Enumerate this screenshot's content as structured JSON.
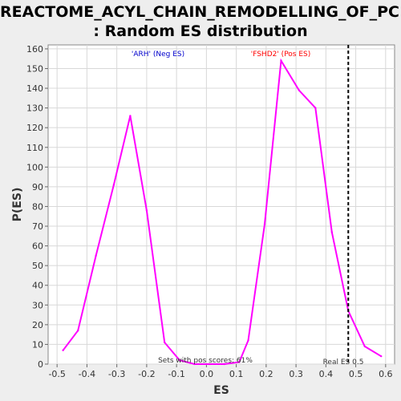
{
  "title_line1": "REACTOME_ACYL_CHAIN_REMODELLING_OF_PC",
  "title_line2": ": Random ES distribution",
  "chart_data": {
    "type": "line",
    "xlabel": "ES",
    "ylabel": "P(ES)",
    "xlim": [
      -0.53,
      0.63
    ],
    "ylim": [
      0,
      162
    ],
    "x_ticks": [
      "-0.5",
      "-0.4",
      "-0.3",
      "-0.2",
      "-0.1",
      "0.0",
      "0.1",
      "0.2",
      "0.3",
      "0.4",
      "0.5",
      "0.6"
    ],
    "y_ticks": [
      "0",
      "10",
      "20",
      "30",
      "40",
      "50",
      "60",
      "70",
      "80",
      "90",
      "100",
      "110",
      "120",
      "130",
      "140",
      "150",
      "160"
    ],
    "series": [
      {
        "color": "#ff00ff",
        "x": [
          -0.48,
          -0.43,
          -0.37,
          -0.31,
          -0.255,
          -0.2,
          -0.14,
          -0.09,
          -0.04,
          0.01,
          0.06,
          0.11,
          0.14,
          0.195,
          0.25,
          0.31,
          0.365,
          0.42,
          0.475,
          0.53,
          0.585
        ],
        "y": [
          7,
          17,
          55,
          91,
          126,
          78,
          11,
          2,
          0,
          0,
          0,
          1,
          12,
          71,
          154,
          139,
          130,
          67,
          27,
          9,
          4
        ]
      }
    ],
    "grid": true,
    "annotations": {
      "neg_label": "'ARH' (Neg ES)",
      "neg_color": "#0000cc",
      "pos_label": "'FSHD2' (Pos ES)",
      "pos_color": "#ff0000",
      "pos_scores": "Sets with pos scores: 61%",
      "real_es_label": "Real ES 0.5",
      "real_es": 0.475
    }
  }
}
